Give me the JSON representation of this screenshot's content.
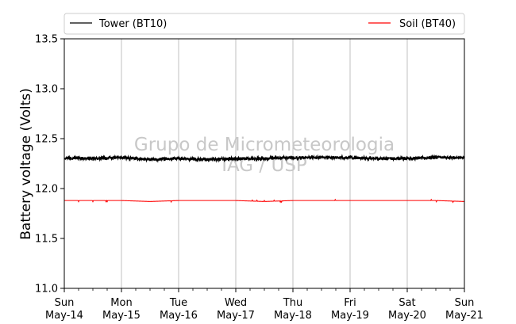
{
  "chart_data": {
    "type": "line",
    "title": "",
    "xlabel": "",
    "ylabel": "Battery voltage (Volts)",
    "ylim": [
      11.0,
      13.5
    ],
    "yticks": [
      "11.0",
      "11.5",
      "12.0",
      "12.5",
      "13.0",
      "13.5"
    ],
    "xlim": [
      "2023-05-14",
      "2023-05-21"
    ],
    "xticks": [
      {
        "day": "Sun",
        "date": "May-14"
      },
      {
        "day": "Mon",
        "date": "May-15"
      },
      {
        "day": "Tue",
        "date": "May-16"
      },
      {
        "day": "Wed",
        "date": "May-17"
      },
      {
        "day": "Thu",
        "date": "May-18"
      },
      {
        "day": "Fri",
        "date": "May-19"
      },
      {
        "day": "Sat",
        "date": "May-20"
      },
      {
        "day": "Sun",
        "date": "May-21"
      }
    ],
    "grid": "vertical",
    "legend_position": "top",
    "watermark": [
      "Grupo de Micrometeorologia",
      "IAG / USP"
    ],
    "series": [
      {
        "name": "Tower (BT10)",
        "color": "#000000",
        "x": [
          "May-14",
          "May-14 12h",
          "May-15",
          "May-15 12h",
          "May-16",
          "May-16 12h",
          "May-17",
          "May-17 12h",
          "May-18",
          "May-18 12h",
          "May-19",
          "May-19 12h",
          "May-20",
          "May-20 12h",
          "May-21"
        ],
        "values": [
          12.31,
          12.3,
          12.31,
          12.29,
          12.3,
          12.29,
          12.3,
          12.3,
          12.31,
          12.31,
          12.31,
          12.3,
          12.3,
          12.31,
          12.31
        ]
      },
      {
        "name": "Soil (BT40)",
        "color": "#ff0000",
        "x": [
          "May-14",
          "May-14 12h",
          "May-15",
          "May-15 12h",
          "May-16",
          "May-16 12h",
          "May-17",
          "May-17 12h",
          "May-18",
          "May-18 12h",
          "May-19",
          "May-19 12h",
          "May-20",
          "May-20 12h",
          "May-21"
        ],
        "values": [
          11.88,
          11.88,
          11.88,
          11.87,
          11.88,
          11.88,
          11.88,
          11.87,
          11.88,
          11.88,
          11.88,
          11.88,
          11.88,
          11.88,
          11.87
        ]
      }
    ]
  }
}
